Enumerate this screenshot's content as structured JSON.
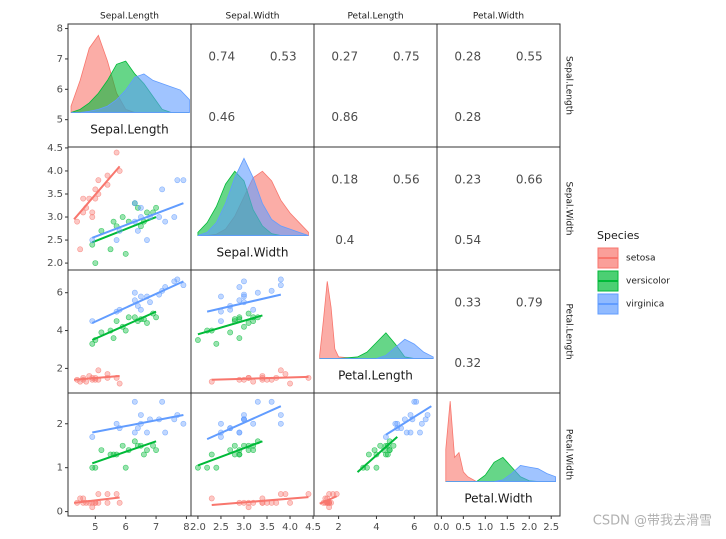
{
  "chart_data": {
    "type": "pairs",
    "legend_title": "Species",
    "watermark": "CSDN @带我去滑雪",
    "variables": [
      {
        "name": "Sepal.Length",
        "lim": [
          4.1,
          8.15
        ],
        "xticks": [
          5,
          6,
          7,
          8
        ],
        "yticks": [
          5,
          6,
          7,
          8
        ],
        "density_x": [
          4.2,
          4.5,
          4.8,
          5.1,
          5.4,
          5.7,
          6.0,
          6.3,
          6.6,
          6.9,
          7.2,
          7.5,
          7.8,
          8.1
        ],
        "density_ylim": [
          0,
          1.3
        ]
      },
      {
        "name": "Sepal.Width",
        "lim": [
          1.85,
          4.52
        ],
        "xticks": [
          {
            "value": 2,
            "label": "2.0"
          },
          2.5,
          {
            "value": 3,
            "label": "3.0"
          },
          3.5,
          {
            "value": 4,
            "label": "4.0"
          },
          4.5
        ],
        "yticks": [
          {
            "value": 2,
            "label": "2.0"
          },
          2.5,
          {
            "value": 3,
            "label": "3.0"
          },
          3.5,
          {
            "value": 4,
            "label": "4.0"
          },
          4.5
        ],
        "density_x": [
          2.0,
          2.2,
          2.4,
          2.6,
          2.8,
          3.0,
          3.2,
          3.4,
          3.6,
          3.8,
          4.0,
          4.2,
          4.4
        ],
        "density_ylim": [
          0,
          1.3
        ]
      },
      {
        "name": "Petal.Length",
        "lim": [
          0.7,
          7.2
        ],
        "xticks": [
          2,
          4,
          6
        ],
        "yticks": [
          2,
          4,
          6
        ],
        "density_x": [
          1.0,
          1.2,
          1.4,
          1.6,
          1.8,
          2.0,
          3.0,
          3.5,
          4.0,
          4.5,
          5.0,
          5.5,
          6.0,
          6.5,
          7.0
        ],
        "density_ylim": [
          0,
          2.6
        ]
      },
      {
        "name": "Petal.Width",
        "lim": [
          -0.1,
          2.7
        ],
        "xticks": [
          {
            "value": 0,
            "label": "0.0"
          },
          0.5,
          {
            "value": 1,
            "label": "1.0"
          },
          1.5,
          {
            "value": 2,
            "label": "2.0"
          },
          2.5
        ],
        "yticks": [
          0,
          1,
          2
        ],
        "density_x": [
          0.1,
          0.2,
          0.3,
          0.4,
          0.5,
          0.6,
          0.8,
          1.0,
          1.2,
          1.4,
          1.6,
          1.8,
          2.0,
          2.2,
          2.4,
          2.6
        ],
        "density_ylim": [
          0,
          5.2
        ]
      }
    ],
    "series": [
      {
        "name": "setosa",
        "color": "#F8766D",
        "values": [
          [
            5.1,
            3.5,
            1.4,
            0.2
          ],
          [
            4.9,
            3.0,
            1.4,
            0.2
          ],
          [
            4.7,
            3.2,
            1.3,
            0.2
          ],
          [
            4.6,
            3.1,
            1.5,
            0.2
          ],
          [
            5.0,
            3.6,
            1.4,
            0.2
          ],
          [
            5.4,
            3.9,
            1.7,
            0.4
          ],
          [
            4.6,
            3.4,
            1.4,
            0.3
          ],
          [
            5.0,
            3.4,
            1.5,
            0.2
          ],
          [
            4.4,
            2.9,
            1.4,
            0.2
          ],
          [
            4.9,
            3.1,
            1.5,
            0.1
          ],
          [
            5.4,
            3.7,
            1.5,
            0.2
          ],
          [
            4.8,
            3.4,
            1.6,
            0.2
          ],
          [
            5.8,
            4.0,
            1.2,
            0.2
          ],
          [
            5.7,
            4.4,
            1.5,
            0.4
          ],
          [
            4.5,
            2.3,
            1.3,
            0.3
          ],
          [
            5.1,
            3.8,
            1.9,
            0.4
          ]
        ],
        "density": [
          [
            0.1,
            0.5,
            1.0,
            1.2,
            0.8,
            0.3,
            0.05,
            0,
            0,
            0,
            0,
            0,
            0,
            0
          ],
          [
            0,
            0,
            0.02,
            0.1,
            0.3,
            0.6,
            0.9,
            1.0,
            0.85,
            0.55,
            0.35,
            0.2,
            0.05
          ],
          [
            0.1,
            1.2,
            2.4,
            1.6,
            0.3,
            0.05,
            0,
            0,
            0,
            0,
            0,
            0,
            0,
            0,
            0
          ],
          [
            2.0,
            5.0,
            1.5,
            1.8,
            0.6,
            0.3,
            0,
            0,
            0,
            0,
            0,
            0,
            0,
            0,
            0,
            0
          ]
        ]
      },
      {
        "name": "versicolor",
        "color": "#00BA38",
        "values": [
          [
            7.0,
            3.2,
            4.7,
            1.4
          ],
          [
            6.4,
            3.2,
            4.5,
            1.5
          ],
          [
            6.9,
            3.1,
            4.9,
            1.5
          ],
          [
            5.5,
            2.3,
            4.0,
            1.3
          ],
          [
            6.5,
            2.8,
            4.6,
            1.5
          ],
          [
            5.7,
            2.8,
            4.5,
            1.3
          ],
          [
            6.3,
            3.3,
            4.7,
            1.6
          ],
          [
            4.9,
            2.4,
            3.3,
            1.0
          ],
          [
            6.6,
            2.9,
            4.6,
            1.3
          ],
          [
            5.2,
            2.7,
            3.9,
            1.4
          ],
          [
            5.0,
            2.0,
            3.5,
            1.0
          ],
          [
            5.9,
            3.0,
            4.2,
            1.5
          ],
          [
            6.0,
            2.2,
            4.0,
            1.0
          ],
          [
            6.1,
            2.9,
            4.7,
            1.4
          ],
          [
            5.6,
            2.9,
            3.6,
            1.3
          ],
          [
            6.7,
            3.1,
            4.4,
            1.4
          ]
        ],
        "density": [
          [
            0,
            0.05,
            0.15,
            0.3,
            0.5,
            0.75,
            0.8,
            0.6,
            0.45,
            0.25,
            0.05,
            0,
            0,
            0
          ],
          [
            0.05,
            0.2,
            0.45,
            0.8,
            1.0,
            0.85,
            0.4,
            0.15,
            0.03,
            0,
            0,
            0,
            0
          ],
          [
            0,
            0,
            0,
            0,
            0,
            0,
            0.05,
            0.2,
            0.5,
            0.8,
            0.45,
            0.05,
            0,
            0,
            0
          ],
          [
            0,
            0,
            0,
            0,
            0,
            0,
            0,
            0.4,
            1.2,
            1.5,
            0.9,
            0.3,
            0.05,
            0,
            0,
            0
          ]
        ]
      },
      {
        "name": "virginica",
        "color": "#619CFF",
        "values": [
          [
            6.3,
            3.3,
            6.0,
            2.5
          ],
          [
            5.8,
            2.7,
            5.1,
            1.9
          ],
          [
            7.1,
            3.0,
            5.9,
            2.1
          ],
          [
            6.3,
            2.9,
            5.6,
            1.8
          ],
          [
            6.5,
            3.0,
            5.8,
            2.2
          ],
          [
            7.6,
            3.0,
            6.6,
            2.1
          ],
          [
            4.9,
            2.5,
            4.5,
            1.7
          ],
          [
            7.3,
            2.9,
            6.3,
            1.8
          ],
          [
            6.7,
            2.5,
            5.8,
            1.8
          ],
          [
            7.2,
            3.6,
            6.1,
            2.5
          ],
          [
            6.5,
            3.2,
            5.1,
            2.0
          ],
          [
            6.4,
            2.7,
            5.3,
            1.9
          ],
          [
            6.8,
            3.0,
            5.5,
            2.1
          ],
          [
            5.7,
            2.5,
            5.0,
            2.0
          ],
          [
            7.7,
            3.8,
            6.7,
            2.2
          ],
          [
            7.9,
            3.8,
            6.4,
            2.0
          ]
        ],
        "density": [
          [
            0,
            0,
            0.02,
            0.05,
            0.1,
            0.2,
            0.35,
            0.55,
            0.6,
            0.5,
            0.45,
            0.4,
            0.35,
            0.2
          ],
          [
            0,
            0.05,
            0.2,
            0.5,
            0.9,
            1.2,
            0.9,
            0.5,
            0.25,
            0.15,
            0.1,
            0.05,
            0
          ],
          [
            0,
            0,
            0,
            0,
            0,
            0,
            0,
            0,
            0,
            0.1,
            0.35,
            0.6,
            0.45,
            0.2,
            0.05
          ],
          [
            0,
            0,
            0,
            0,
            0,
            0,
            0,
            0,
            0,
            0.1,
            0.5,
            1.0,
            0.9,
            0.8,
            0.5,
            0.3
          ]
        ]
      }
    ],
    "correlations": [
      [
        [
          0.74,
          0.53,
          0.46
        ],
        [
          0.27,
          0.75,
          0.86
        ],
        [
          0.28,
          0.55,
          0.28
        ]
      ],
      [
        [
          0.18,
          0.56,
          0.4
        ],
        [
          0.23,
          0.66,
          0.54
        ]
      ],
      [
        [
          0.33,
          0.79,
          0.32
        ]
      ]
    ],
    "fits": [
      [],
      [
        [
          [
            4.3,
            2.95,
            5.8,
            4.1
          ],
          [
            4.9,
            2.45,
            7.0,
            3.0
          ],
          [
            4.9,
            2.55,
            7.9,
            3.3
          ]
        ]
      ],
      [
        [
          [
            4.3,
            1.4,
            5.8,
            1.6
          ],
          [
            4.9,
            3.5,
            7.0,
            5.0
          ],
          [
            4.9,
            4.4,
            7.9,
            6.6
          ]
        ],
        [
          [
            2.3,
            1.4,
            4.4,
            1.55
          ],
          [
            2.0,
            3.8,
            3.4,
            4.8
          ],
          [
            2.2,
            5.0,
            3.8,
            5.9
          ]
        ]
      ],
      [
        [
          [
            4.3,
            0.2,
            5.8,
            0.32
          ],
          [
            4.9,
            1.1,
            7.0,
            1.6
          ],
          [
            4.9,
            1.8,
            7.9,
            2.2
          ]
        ],
        [
          [
            2.3,
            0.15,
            4.4,
            0.33
          ],
          [
            2.0,
            1.05,
            3.4,
            1.6
          ],
          [
            2.2,
            1.65,
            3.8,
            2.4
          ]
        ],
        [
          [
            1.0,
            0.18,
            1.9,
            0.35
          ],
          [
            3.0,
            0.9,
            5.1,
            1.7
          ],
          [
            4.5,
            1.75,
            6.9,
            2.4
          ]
        ]
      ]
    ]
  }
}
